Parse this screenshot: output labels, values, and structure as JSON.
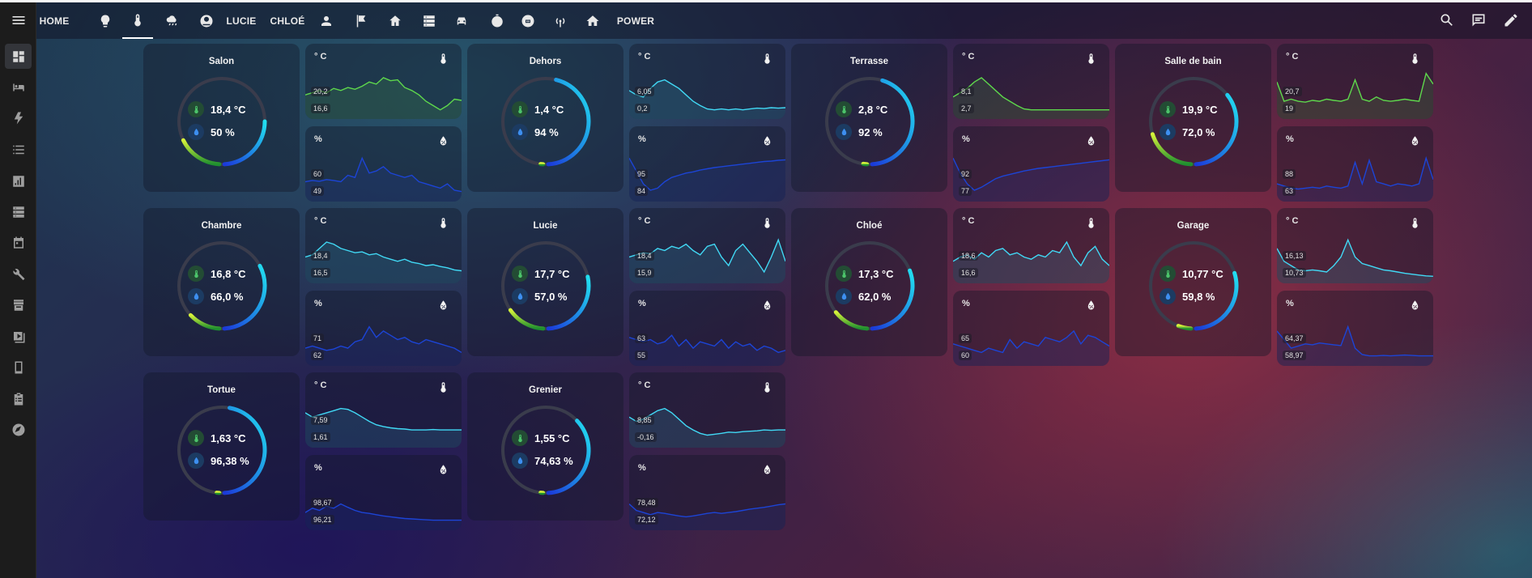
{
  "header": {
    "tabs": [
      {
        "type": "text",
        "label": "HOME",
        "name": "tab-home"
      },
      {
        "type": "icon",
        "icon": "lightbulb-icon",
        "name": "tab-lights"
      },
      {
        "type": "icon",
        "icon": "thermometer-icon",
        "name": "tab-temperature",
        "active": true
      },
      {
        "type": "icon",
        "icon": "weather-icon",
        "name": "tab-weather"
      },
      {
        "type": "icon",
        "icon": "robot-vacuum-icon",
        "name": "tab-vacuum"
      },
      {
        "type": "text",
        "label": "LUCIE",
        "name": "tab-lucie"
      },
      {
        "type": "text",
        "label": "CHLOÉ",
        "name": "tab-chloe"
      },
      {
        "type": "icon",
        "icon": "person-icon",
        "name": "tab-person"
      },
      {
        "type": "icon",
        "icon": "flag-icon",
        "name": "tab-flag"
      },
      {
        "type": "icon",
        "icon": "home-outline-icon",
        "name": "tab-home-outline"
      },
      {
        "type": "icon",
        "icon": "server-icon",
        "name": "tab-server"
      },
      {
        "type": "icon",
        "icon": "car-icon",
        "name": "tab-car"
      },
      {
        "type": "icon",
        "icon": "timer-icon",
        "name": "tab-timer"
      },
      {
        "type": "icon",
        "icon": "robot-icon",
        "name": "tab-robot"
      },
      {
        "type": "icon",
        "icon": "antenna-icon",
        "name": "tab-antenna"
      },
      {
        "type": "icon",
        "icon": "home-icon",
        "name": "tab-home-filled"
      },
      {
        "type": "text",
        "label": "POWER",
        "name": "tab-power"
      }
    ],
    "actions": [
      {
        "icon": "search-icon",
        "name": "search-button"
      },
      {
        "icon": "assist-chat-icon",
        "name": "assist-button"
      },
      {
        "icon": "pencil-icon",
        "name": "edit-dashboard-button"
      }
    ]
  },
  "sidebar": {
    "items": [
      {
        "icon": "dashboard-icon",
        "name": "sidebar-item-overview",
        "active": true
      },
      {
        "icon": "bed-icon",
        "name": "sidebar-item-bedroom"
      },
      {
        "icon": "lightning-icon",
        "name": "sidebar-item-energy"
      },
      {
        "icon": "list-icon",
        "name": "sidebar-item-logbook"
      },
      {
        "icon": "chart-icon",
        "name": "sidebar-item-history"
      },
      {
        "icon": "server-icon",
        "name": "sidebar-item-server"
      },
      {
        "icon": "calendar-icon",
        "name": "sidebar-item-calendar"
      },
      {
        "icon": "wrench-icon",
        "name": "sidebar-item-developer"
      },
      {
        "icon": "store-icon",
        "name": "sidebar-item-hacs"
      },
      {
        "icon": "media-icon",
        "name": "sidebar-item-media"
      },
      {
        "icon": "tablet-icon",
        "name": "sidebar-item-tablet"
      },
      {
        "icon": "clipboard-icon",
        "name": "sidebar-item-todo"
      },
      {
        "icon": "compass-icon",
        "name": "sidebar-item-explore"
      }
    ]
  },
  "colors": {
    "temp_line": "#41d9f5",
    "temp_line_warm": "#5ed84c",
    "humidity_line": "#1c44d6",
    "gauge_track": "#3a3c4c"
  },
  "units": {
    "temp": "° C",
    "humidity": "%"
  },
  "rooms": [
    {
      "name": "Salon",
      "temp": "18,4 °C",
      "humidity": "50 %",
      "temp_frac": 0.35,
      "hum_frac": 0.5,
      "temp_max": "20,2",
      "temp_min": "16,6",
      "hum_max": "60",
      "hum_min": "49",
      "temp_color": "#5ed84c",
      "temp_series": [
        0.45,
        0.5,
        0.55,
        0.5,
        0.6,
        0.55,
        0.62,
        0.58,
        0.65,
        0.75,
        0.7,
        0.85,
        0.78,
        0.8,
        0.62,
        0.55,
        0.45,
        0.3,
        0.2,
        0.1,
        0.2,
        0.35,
        0.32
      ],
      "hum_series": [
        0.35,
        0.38,
        0.36,
        0.4,
        0.38,
        0.35,
        0.5,
        0.45,
        0.9,
        0.55,
        0.6,
        0.7,
        0.55,
        0.5,
        0.45,
        0.5,
        0.35,
        0.3,
        0.25,
        0.2,
        0.3,
        0.15,
        0.12
      ]
    },
    {
      "name": "Dehors",
      "temp": "1,4 °C",
      "humidity": "94 %",
      "temp_frac": 0.02,
      "hum_frac": 0.94,
      "temp_max": "6,05",
      "temp_min": "0,2",
      "hum_max": "95",
      "hum_min": "84",
      "temp_color": "#41d9f5",
      "temp_series": [
        0.55,
        0.45,
        0.4,
        0.6,
        0.75,
        0.8,
        0.7,
        0.6,
        0.45,
        0.3,
        0.2,
        0.12,
        0.1,
        0.12,
        0.1,
        0.12,
        0.1,
        0.12,
        0.14,
        0.13,
        0.15,
        0.14,
        0.15
      ],
      "hum_series": [
        0.9,
        0.6,
        0.3,
        0.15,
        0.2,
        0.35,
        0.45,
        0.5,
        0.55,
        0.58,
        0.62,
        0.65,
        0.68,
        0.7,
        0.72,
        0.74,
        0.76,
        0.78,
        0.8,
        0.82,
        0.83,
        0.85,
        0.86
      ]
    },
    {
      "name": "Terrasse",
      "temp": "2,8 °C",
      "humidity": "92 %",
      "temp_frac": 0.03,
      "hum_frac": 0.92,
      "temp_max": "8,1",
      "temp_min": "2,7",
      "hum_max": "92",
      "hum_min": "77",
      "temp_color": "#5ed84c",
      "temp_series": [
        0.4,
        0.5,
        0.6,
        0.75,
        0.85,
        0.7,
        0.55,
        0.4,
        0.3,
        0.2,
        0.12,
        0.1,
        0.1,
        0.1,
        0.1,
        0.1,
        0.1,
        0.1,
        0.1,
        0.1,
        0.1,
        0.1,
        0.1
      ],
      "hum_series": [
        0.9,
        0.55,
        0.3,
        0.15,
        0.22,
        0.32,
        0.42,
        0.48,
        0.52,
        0.56,
        0.6,
        0.63,
        0.66,
        0.68,
        0.7,
        0.72,
        0.74,
        0.76,
        0.78,
        0.8,
        0.82,
        0.84,
        0.86
      ]
    },
    {
      "name": "Salle de bain",
      "temp": "19,9 °C",
      "humidity": "72,0 %",
      "temp_frac": 0.4,
      "hum_frac": 0.72,
      "temp_max": "20,7",
      "temp_min": "19",
      "hum_max": "88",
      "hum_min": "63",
      "temp_color": "#5ed84c",
      "temp_series": [
        0.75,
        0.3,
        0.35,
        0.3,
        0.28,
        0.32,
        0.3,
        0.35,
        0.32,
        0.3,
        0.35,
        0.8,
        0.35,
        0.3,
        0.4,
        0.32,
        0.3,
        0.32,
        0.35,
        0.32,
        0.3,
        0.95,
        0.7
      ],
      "hum_series": [
        0.3,
        0.25,
        0.2,
        0.18,
        0.2,
        0.22,
        0.2,
        0.25,
        0.22,
        0.2,
        0.25,
        0.8,
        0.3,
        0.85,
        0.35,
        0.3,
        0.25,
        0.3,
        0.28,
        0.25,
        0.3,
        0.9,
        0.4
      ]
    },
    {
      "name": "Chambre",
      "temp": "16,8 °C",
      "humidity": "66,0 %",
      "temp_frac": 0.25,
      "hum_frac": 0.66,
      "temp_max": "18,4",
      "temp_min": "16,5",
      "hum_max": "71",
      "hum_min": "62",
      "temp_color": "#41d9f5",
      "temp_series": [
        0.5,
        0.55,
        0.7,
        0.85,
        0.8,
        0.7,
        0.65,
        0.6,
        0.62,
        0.55,
        0.58,
        0.5,
        0.45,
        0.4,
        0.45,
        0.38,
        0.35,
        0.3,
        0.32,
        0.28,
        0.25,
        0.2,
        0.18
      ],
      "hum_series": [
        0.3,
        0.35,
        0.3,
        0.25,
        0.28,
        0.35,
        0.3,
        0.45,
        0.5,
        0.8,
        0.55,
        0.7,
        0.6,
        0.5,
        0.55,
        0.45,
        0.4,
        0.5,
        0.45,
        0.4,
        0.35,
        0.3,
        0.2
      ]
    },
    {
      "name": "Lucie",
      "temp": "17,7 °C",
      "humidity": "57,0 %",
      "temp_frac": 0.3,
      "hum_frac": 0.57,
      "temp_max": "18,4",
      "temp_min": "15,9",
      "hum_max": "63",
      "hum_min": "55",
      "temp_color": "#41d9f5",
      "temp_series": [
        0.5,
        0.55,
        0.6,
        0.58,
        0.7,
        0.65,
        0.75,
        0.7,
        0.8,
        0.65,
        0.55,
        0.75,
        0.8,
        0.5,
        0.3,
        0.65,
        0.8,
        0.6,
        0.4,
        0.15,
        0.5,
        0.9,
        0.4
      ],
      "hum_series": [
        0.55,
        0.5,
        0.45,
        0.5,
        0.4,
        0.45,
        0.6,
        0.35,
        0.5,
        0.3,
        0.45,
        0.4,
        0.35,
        0.5,
        0.3,
        0.45,
        0.35,
        0.4,
        0.25,
        0.35,
        0.3,
        0.2,
        0.25
      ]
    },
    {
      "name": "Chloé",
      "temp": "17,3 °C",
      "humidity": "62,0 %",
      "temp_frac": 0.28,
      "hum_frac": 0.62,
      "temp_max": "18,6",
      "temp_min": "16,6",
      "hum_max": "65",
      "hum_min": "60",
      "temp_color": "#41d9f5",
      "temp_series": [
        0.4,
        0.5,
        0.55,
        0.45,
        0.6,
        0.5,
        0.65,
        0.7,
        0.55,
        0.6,
        0.5,
        0.45,
        0.55,
        0.5,
        0.65,
        0.6,
        0.85,
        0.5,
        0.3,
        0.6,
        0.75,
        0.45,
        0.3
      ],
      "hum_series": [
        0.4,
        0.35,
        0.3,
        0.25,
        0.2,
        0.3,
        0.25,
        0.2,
        0.5,
        0.3,
        0.45,
        0.4,
        0.35,
        0.55,
        0.5,
        0.45,
        0.55,
        0.7,
        0.4,
        0.6,
        0.55,
        0.45,
        0.35
      ]
    },
    {
      "name": "Garage",
      "temp": "10,77 °C",
      "humidity": "59,8 %",
      "temp_frac": 0.1,
      "hum_frac": 0.6,
      "temp_max": "16,13",
      "temp_min": "10,73",
      "hum_max": "64,37",
      "hum_min": "58,97",
      "temp_color": "#41d9f5",
      "temp_series": [
        0.7,
        0.4,
        0.3,
        0.2,
        0.18,
        0.2,
        0.18,
        0.15,
        0.3,
        0.5,
        0.9,
        0.5,
        0.35,
        0.3,
        0.25,
        0.2,
        0.18,
        0.15,
        0.12,
        0.1,
        0.08,
        0.06,
        0.05
      ],
      "hum_series": [
        0.7,
        0.5,
        0.3,
        0.35,
        0.4,
        0.38,
        0.42,
        0.4,
        0.38,
        0.36,
        0.8,
        0.3,
        0.15,
        0.12,
        0.12,
        0.13,
        0.12,
        0.13,
        0.14,
        0.13,
        0.12,
        0.12,
        0.12
      ]
    },
    {
      "name": "Tortue",
      "temp": "1,63 °C",
      "humidity": "96,38 %",
      "temp_frac": 0.02,
      "hum_frac": 0.96,
      "temp_max": "7,59",
      "temp_min": "1,61",
      "hum_max": "98,67",
      "hum_min": "96,21",
      "temp_color": "#41d9f5",
      "temp_series": [
        0.7,
        0.6,
        0.65,
        0.7,
        0.75,
        0.8,
        0.78,
        0.7,
        0.6,
        0.5,
        0.42,
        0.38,
        0.35,
        0.33,
        0.32,
        0.3,
        0.3,
        0.3,
        0.31,
        0.3,
        0.3,
        0.3,
        0.3
      ],
      "hum_series": [
        0.3,
        0.4,
        0.35,
        0.45,
        0.4,
        0.5,
        0.42,
        0.35,
        0.3,
        0.28,
        0.25,
        0.22,
        0.2,
        0.18,
        0.16,
        0.15,
        0.14,
        0.13,
        0.12,
        0.12,
        0.12,
        0.12,
        0.12
      ]
    },
    {
      "name": "Grenier",
      "temp": "1,55 °C",
      "humidity": "74,63 %",
      "temp_frac": 0.02,
      "hum_frac": 0.75,
      "temp_max": "8,85",
      "temp_min": "-0,16",
      "hum_max": "78,48",
      "hum_min": "72,12",
      "temp_color": "#41d9f5",
      "temp_series": [
        0.6,
        0.5,
        0.55,
        0.65,
        0.75,
        0.8,
        0.7,
        0.55,
        0.4,
        0.3,
        0.22,
        0.18,
        0.2,
        0.22,
        0.25,
        0.24,
        0.26,
        0.27,
        0.28,
        0.3,
        0.29,
        0.3,
        0.3
      ],
      "hum_series": [
        0.5,
        0.35,
        0.3,
        0.25,
        0.3,
        0.28,
        0.25,
        0.22,
        0.2,
        0.22,
        0.25,
        0.28,
        0.3,
        0.28,
        0.3,
        0.32,
        0.35,
        0.38,
        0.4,
        0.42,
        0.45,
        0.48,
        0.5
      ]
    }
  ]
}
